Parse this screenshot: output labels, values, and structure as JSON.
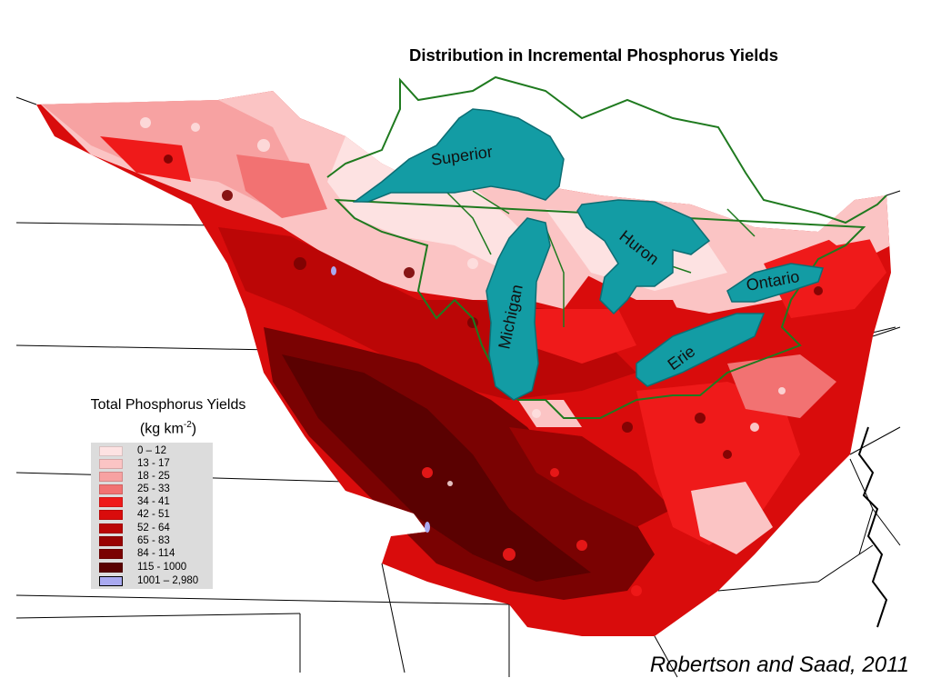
{
  "title": "Distribution in Incremental Phosphorus Yields",
  "citation": "Robertson and Saad, 2011",
  "legend": {
    "title": "Total Phosphorus Yields",
    "units_prefix": "(kg km",
    "units_exp": "-2",
    "units_suffix": ")",
    "classes": [
      {
        "label": "0 – 12",
        "color": "#fde2e2"
      },
      {
        "label": "13 - 17",
        "color": "#fbc4c4"
      },
      {
        "label": "18 - 25",
        "color": "#f7a2a2"
      },
      {
        "label": "25 - 33",
        "color": "#f27272"
      },
      {
        "label": "34 - 41",
        "color": "#ef1a1a"
      },
      {
        "label": "42 - 51",
        "color": "#d90c0c"
      },
      {
        "label": "52 - 64",
        "color": "#bb0606"
      },
      {
        "label": "65 - 83",
        "color": "#990303"
      },
      {
        "label": "84 - 114",
        "color": "#7a0202"
      },
      {
        "label": "115 - 1000",
        "color": "#5a0101"
      },
      {
        "label": "1001 – 2,980",
        "color": "#a9a9f0"
      }
    ]
  },
  "lakes": [
    {
      "name": "Superior"
    },
    {
      "name": "Michigan"
    },
    {
      "name": "Huron"
    },
    {
      "name": "Erie"
    },
    {
      "name": "Ontario"
    }
  ],
  "colors": {
    "lake_fill": "#139ca4",
    "lake_border": "#0c6e74",
    "basin_boundary": "#1f7a1f",
    "state_boundary": "#000000"
  }
}
